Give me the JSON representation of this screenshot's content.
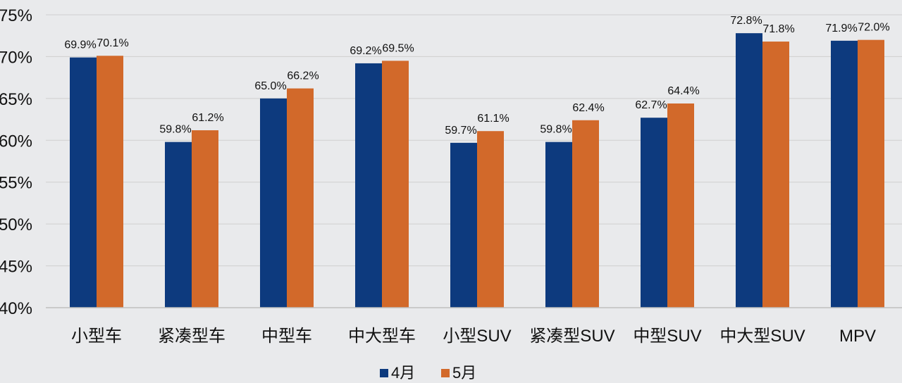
{
  "chart_data": {
    "type": "bar",
    "categories": [
      "小型车",
      "紧凑型车",
      "中型车",
      "中大型车",
      "小型SUV",
      "紧凑型SUV",
      "中型SUV",
      "中大型SUV",
      "MPV"
    ],
    "series": [
      {
        "name": "4月",
        "color": "#0d3a7e",
        "values": [
          69.9,
          59.8,
          65.0,
          69.2,
          59.7,
          59.8,
          62.7,
          72.8,
          71.9
        ],
        "labels": [
          "69.9%",
          "59.8%",
          "65.0%",
          "69.2%",
          "59.7%",
          "59.8%",
          "62.7%",
          "72.8%",
          "71.9%"
        ]
      },
      {
        "name": "5月",
        "color": "#d2692a",
        "values": [
          70.1,
          61.2,
          66.2,
          69.5,
          61.1,
          62.4,
          64.4,
          71.8,
          72.0
        ],
        "labels": [
          "70.1%",
          "61.2%",
          "66.2%",
          "69.5%",
          "61.1%",
          "62.4%",
          "64.4%",
          "71.8%",
          "72.0%"
        ]
      }
    ],
    "ylim": [
      40,
      75
    ],
    "yticks": [
      40,
      45,
      50,
      55,
      60,
      65,
      70,
      75
    ],
    "ytick_labels": [
      "40%",
      "45%",
      "50%",
      "55%",
      "60%",
      "65%",
      "70%",
      "75%"
    ],
    "title": "",
    "xlabel": "",
    "ylabel": "",
    "grid": true,
    "legend_position": "bottom"
  }
}
